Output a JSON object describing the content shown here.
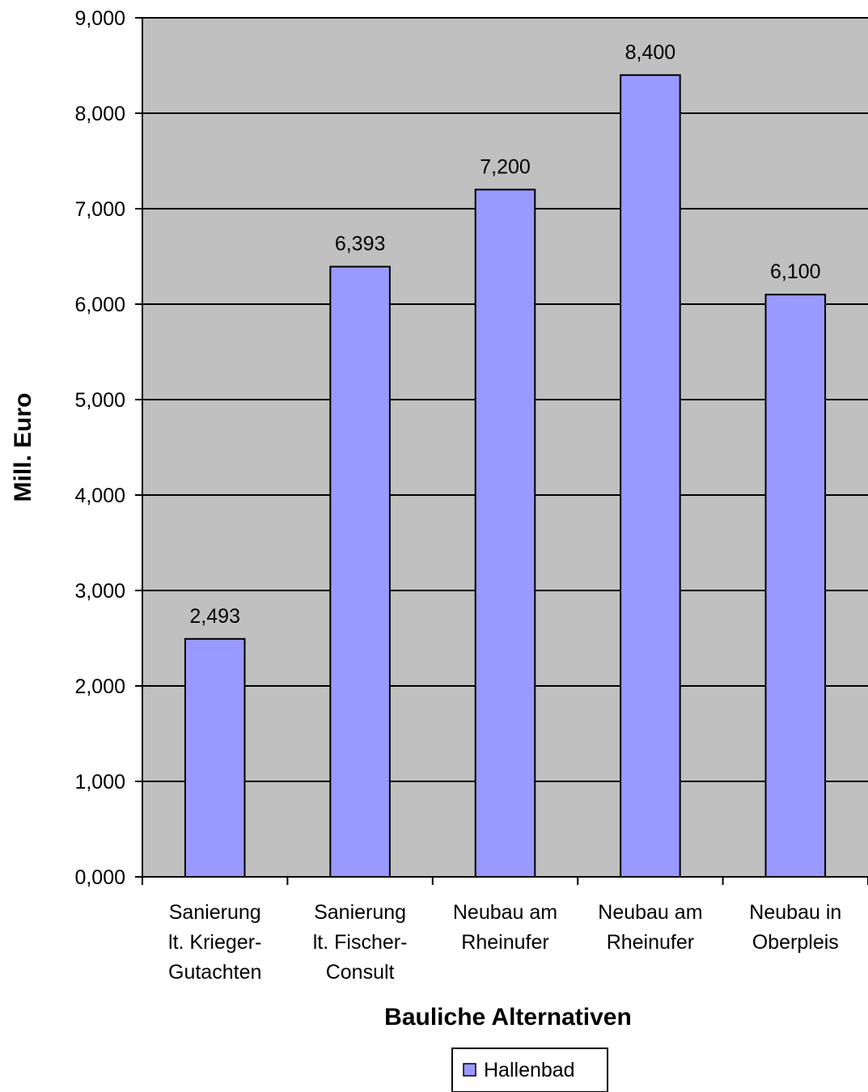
{
  "chart_data": {
    "type": "bar",
    "title": "",
    "xlabel": "Bauliche Alternativen",
    "ylabel": "Mill. Euro",
    "ylim": [
      0,
      9
    ],
    "yticks": [
      0,
      1,
      2,
      3,
      4,
      5,
      6,
      7,
      8,
      9
    ],
    "ytick_labels": [
      "0,000",
      "1,000",
      "2,000",
      "3,000",
      "4,000",
      "5,000",
      "6,000",
      "7,000",
      "8,000",
      "9,000"
    ],
    "grid": true,
    "legend_position": "bottom",
    "categories": [
      [
        "Sanierung",
        "lt. Krieger-",
        "Gutachten"
      ],
      [
        "Sanierung",
        "lt. Fischer-",
        "Consult"
      ],
      [
        "Neubau am",
        "Rheinufer"
      ],
      [
        "Neubau am",
        "Rheinufer"
      ],
      [
        "Neubau in",
        "Oberpleis"
      ]
    ],
    "series": [
      {
        "name": "Hallenbad",
        "values": [
          2.493,
          6.393,
          7.2,
          8.4,
          6.1
        ],
        "labels": [
          "2,493",
          "6,393",
          "7,200",
          "8,400",
          "6,100"
        ]
      }
    ],
    "colors": {
      "plot_background": "#c0c0c0",
      "bar_fill": "#9999ff",
      "bar_stroke": "#000000",
      "gridline": "#000000"
    }
  }
}
